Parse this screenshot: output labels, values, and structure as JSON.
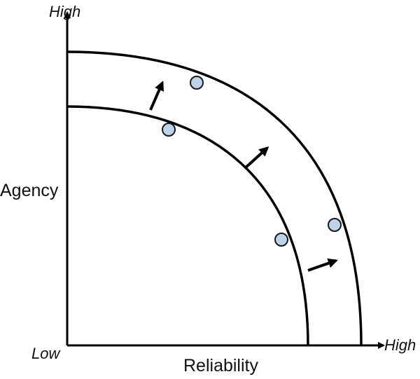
{
  "labels": {
    "y_high": "High",
    "x_high": "High",
    "origin": "Low",
    "y_axis": "Agency",
    "x_axis": "Reliability"
  },
  "colors": {
    "stroke": "#000000",
    "marker_fill": "#bcd4ea",
    "marker_stroke": "#1a1a1a",
    "text": "#111111"
  },
  "diagram": {
    "curves": 2,
    "markers_per_curve": 2,
    "shift_arrows": 3
  }
}
